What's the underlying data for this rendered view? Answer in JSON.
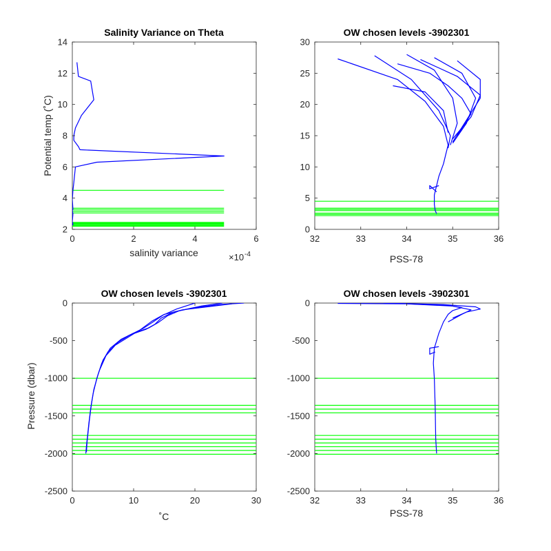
{
  "figure": {
    "background": "#ffffff"
  },
  "chart_data": [
    {
      "id": "p1",
      "type": "line",
      "title": "Salinity Variance on Theta",
      "xlabel": "salinity variance",
      "ylabel": "Potential temp (˚C)",
      "xlim": [
        0,
        6
      ],
      "ylim": [
        2,
        14
      ],
      "xticks": [
        0,
        2,
        4,
        6
      ],
      "xtick_labels": [
        "0",
        "2",
        "4",
        "6"
      ],
      "yticks": [
        2,
        4,
        6,
        8,
        10,
        12,
        14
      ],
      "ytick_labels": [
        "2",
        "4",
        "6",
        "8",
        "10",
        "12",
        "14"
      ],
      "x_exponent": "×10",
      "x_exponent_power": "-4",
      "series": [
        {
          "color": "#0000ff",
          "x": [
            0.15,
            0.2,
            0.6,
            0.7,
            0.3,
            0.1,
            0.05,
            0.05,
            0.2,
            0.25,
            4.95,
            0.8,
            0.1,
            0.05,
            0.02,
            0.0,
            0.02,
            0.0,
            0.01,
            0.02,
            0.0,
            0.01,
            0.02,
            0.01,
            0.02
          ],
          "y": [
            12.7,
            11.8,
            11.5,
            10.3,
            9.3,
            8.5,
            8.0,
            7.7,
            7.3,
            7.1,
            6.7,
            6.3,
            6.0,
            5.0,
            4.5,
            3.9,
            3.3,
            3.2,
            3.1,
            3.0,
            2.5,
            2.4,
            2.35,
            2.3,
            2.25
          ]
        }
      ],
      "hlines": {
        "color": "#00ff00",
        "x_range": [
          0,
          4.95
        ],
        "y": [
          4.5,
          3.35,
          3.25,
          3.15,
          3.05,
          2.45,
          2.4,
          2.35,
          2.3,
          2.25,
          2.2
        ]
      }
    },
    {
      "id": "p2",
      "type": "line",
      "title": "OW chosen levels -3902301",
      "xlabel": "PSS-78",
      "ylabel": "",
      "xlim": [
        32,
        36
      ],
      "ylim": [
        0,
        30
      ],
      "xticks": [
        32,
        33,
        34,
        35,
        36
      ],
      "xtick_labels": [
        "32",
        "33",
        "34",
        "35",
        "36"
      ],
      "yticks": [
        0,
        5,
        10,
        15,
        20,
        25,
        30
      ],
      "ytick_labels": [
        "0",
        "5",
        "10",
        "15",
        "20",
        "25",
        "30"
      ],
      "series": [
        {
          "color": "#0000ff",
          "x": [
            32.5,
            33.8,
            34.4,
            34.8,
            34.9,
            34.85,
            34.8,
            34.7,
            34.65,
            34.6,
            34.6,
            34.62,
            34.65
          ],
          "y": [
            27.3,
            24.0,
            20.5,
            16.5,
            13.5,
            12.0,
            10.5,
            8.5,
            7.0,
            5.5,
            4.0,
            3.0,
            2.5
          ]
        },
        {
          "color": "#0000ff",
          "x": [
            33.3,
            34.1,
            34.7,
            34.95,
            34.9
          ],
          "y": [
            27.8,
            24.0,
            19.0,
            15.0,
            13.0
          ]
        },
        {
          "color": "#0000ff",
          "x": [
            34.0,
            34.6,
            35.0,
            35.1,
            34.95
          ],
          "y": [
            28.0,
            25.5,
            21.0,
            17.0,
            13.5
          ]
        },
        {
          "color": "#0000ff",
          "x": [
            34.6,
            35.2,
            35.5,
            35.3,
            35.0
          ],
          "y": [
            27.5,
            25.0,
            21.0,
            17.0,
            13.8
          ]
        },
        {
          "color": "#0000ff",
          "x": [
            35.1,
            35.6,
            35.6,
            35.3,
            35.0
          ],
          "y": [
            27.0,
            24.0,
            21.0,
            17.5,
            14.0
          ]
        },
        {
          "color": "#0000ff",
          "x": [
            33.8,
            34.5,
            34.9,
            35.2,
            35.4,
            35.1
          ],
          "y": [
            26.5,
            25.0,
            23.0,
            21.0,
            18.5,
            15.0
          ]
        },
        {
          "color": "#0000ff",
          "x": [
            34.3,
            35.1,
            35.6,
            35.4,
            35.0
          ],
          "y": [
            27.2,
            24.5,
            21.5,
            18.0,
            14.5
          ]
        },
        {
          "color": "#0000ff",
          "x": [
            33.7,
            34.4,
            34.8,
            34.9
          ],
          "y": [
            23.0,
            22.0,
            19.0,
            15.5
          ]
        },
        {
          "color": "#0000ff",
          "x": [
            34.7,
            34.5,
            34.5,
            34.65
          ],
          "y": [
            7.0,
            6.5,
            7.0,
            6.0
          ]
        }
      ],
      "hlines": {
        "color": "#00ff00",
        "x_range": [
          32,
          36
        ],
        "y": [
          4.5,
          3.4,
          3.2,
          3.0,
          2.6,
          2.4,
          2.2
        ]
      }
    },
    {
      "id": "p3",
      "type": "line",
      "title": "OW chosen levels -3902301",
      "xlabel": "˚C",
      "ylabel": "Pressure (dbar)",
      "xlim": [
        0,
        30
      ],
      "ylim": [
        -2500,
        0
      ],
      "xticks": [
        0,
        10,
        20,
        30
      ],
      "xtick_labels": [
        "0",
        "10",
        "20",
        "30"
      ],
      "yticks": [
        -2500,
        -2000,
        -1500,
        -1000,
        -500,
        0
      ],
      "ytick_labels": [
        "-2500",
        "-2000",
        "-1500",
        "-1000",
        "-500",
        "0"
      ],
      "series": [
        {
          "color": "#0000ff",
          "x": [
            28.0,
            24.0,
            20.0,
            16.5,
            14.5,
            13.5,
            12.0,
            9.5,
            7.5,
            5.8,
            4.8,
            4.0,
            3.4,
            3.0,
            2.7,
            2.5,
            2.3,
            2.2
          ],
          "y": [
            0,
            -20,
            -60,
            -120,
            -200,
            -280,
            -350,
            -420,
            -520,
            -650,
            -800,
            -1000,
            -1200,
            -1400,
            -1600,
            -1750,
            -1900,
            -2000
          ]
        },
        {
          "color": "#0000ff",
          "x": [
            24.5,
            21.0,
            17.5,
            15.5,
            14.0,
            12.5,
            10.0,
            8.0,
            6.2,
            5.0,
            4.2,
            3.5,
            3.1,
            2.8,
            2.6,
            2.4,
            2.3
          ],
          "y": [
            0,
            -40,
            -100,
            -170,
            -260,
            -330,
            -400,
            -480,
            -600,
            -760,
            -950,
            -1150,
            -1350,
            -1550,
            -1700,
            -1850,
            -1980
          ]
        },
        {
          "color": "#0000ff",
          "x": [
            26.0,
            22.0,
            18.0,
            15.0,
            13.0,
            11.0,
            9.0,
            7.0,
            5.5,
            4.5
          ],
          "y": [
            -10,
            -50,
            -90,
            -150,
            -240,
            -360,
            -460,
            -560,
            -700,
            -880
          ]
        },
        {
          "color": "#0000ff",
          "x": [
            20.0,
            17.0,
            14.8,
            13.2,
            11.5,
            9.0
          ],
          "y": [
            0,
            -80,
            -160,
            -250,
            -340,
            -440
          ]
        }
      ],
      "hlines": {
        "color": "#00ff00",
        "x_range": [
          0,
          30
        ],
        "y": [
          -1000,
          -1360,
          -1410,
          -1460,
          -1760,
          -1810,
          -1860,
          -1910,
          -1960,
          -2010
        ]
      }
    },
    {
      "id": "p4",
      "type": "line",
      "title": "OW chosen levels -3902301",
      "xlabel": "PSS-78",
      "ylabel": "",
      "xlim": [
        32,
        36
      ],
      "ylim": [
        -2500,
        0
      ],
      "xticks": [
        32,
        33,
        34,
        35,
        36
      ],
      "xtick_labels": [
        "32",
        "33",
        "34",
        "35",
        "36"
      ],
      "yticks": [
        -2500,
        -2000,
        -1500,
        -1000,
        -500,
        0
      ],
      "ytick_labels": [
        "-2500",
        "-2000",
        "-1500",
        "-1000",
        "-500",
        "0"
      ],
      "series": [
        {
          "color": "#0000ff",
          "x": [
            32.5,
            34.0,
            34.9,
            35.2,
            35.0,
            34.9,
            34.8,
            34.7,
            34.6,
            34.58,
            34.6,
            34.62,
            34.63,
            34.65
          ],
          "y": [
            -5,
            -10,
            -30,
            -60,
            -100,
            -150,
            -250,
            -400,
            -600,
            -800,
            -1000,
            -1400,
            -1800,
            -2000
          ]
        },
        {
          "color": "#0000ff",
          "x": [
            33.5,
            34.8,
            35.5,
            35.6,
            35.3,
            35.0
          ],
          "y": [
            0,
            -20,
            -50,
            -80,
            -120,
            -200
          ]
        },
        {
          "color": "#0000ff",
          "x": [
            34.0,
            35.0,
            35.4,
            35.2,
            34.9
          ],
          "y": [
            -10,
            -40,
            -90,
            -150,
            -250
          ]
        },
        {
          "color": "#0000ff",
          "x": [
            34.7,
            34.5,
            34.5,
            34.62
          ],
          "y": [
            -580,
            -600,
            -680,
            -650
          ]
        }
      ],
      "hlines": {
        "color": "#00ff00",
        "x_range": [
          32,
          36
        ],
        "y": [
          -1000,
          -1360,
          -1410,
          -1460,
          -1760,
          -1810,
          -1860,
          -1910,
          -1960,
          -2010
        ]
      }
    }
  ]
}
